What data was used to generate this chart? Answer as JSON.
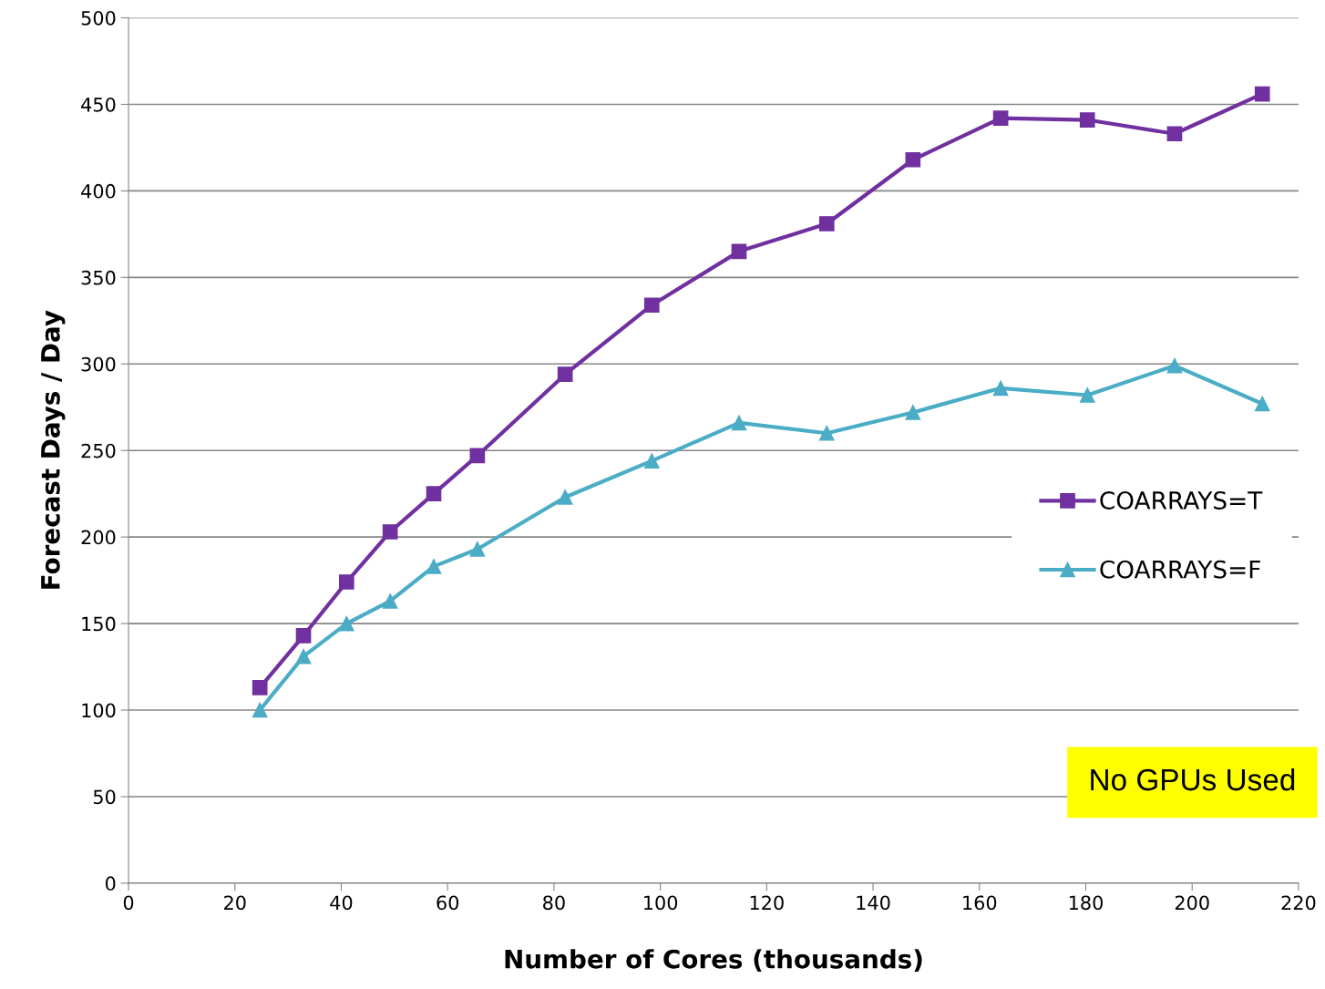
{
  "chart_data": {
    "type": "line",
    "xlabel": "Number of Cores (thousands)",
    "ylabel": "Forecast Days / Day",
    "x": [
      24.7,
      32.9,
      41.0,
      49.2,
      57.4,
      65.6,
      82.1,
      98.4,
      114.8,
      131.3,
      147.5,
      164.0,
      180.3,
      196.7,
      213.2
    ],
    "series": [
      {
        "name": "COARRAYS=T",
        "color": "#7030a0",
        "marker": "square",
        "values": [
          113,
          143,
          174,
          203,
          225,
          247,
          294,
          334,
          365,
          381,
          418,
          442,
          441,
          433,
          456
        ]
      },
      {
        "name": "COARRAYS=F",
        "color": "#4bacc6",
        "marker": "triangle",
        "values": [
          100,
          131,
          150,
          163,
          183,
          193,
          223,
          244,
          266,
          260,
          272,
          286,
          282,
          299,
          277
        ]
      }
    ],
    "xlim": [
      0,
      220
    ],
    "xticks": [
      0,
      20,
      40,
      60,
      80,
      100,
      120,
      140,
      160,
      180,
      200,
      220
    ],
    "ylim": [
      0,
      500
    ],
    "yticks": [
      0,
      50,
      100,
      150,
      200,
      250,
      300,
      350,
      400,
      450,
      500
    ],
    "grid": "y",
    "legend": "right",
    "line_style": "solid",
    "annotations": [
      "No GPUs Used"
    ]
  }
}
